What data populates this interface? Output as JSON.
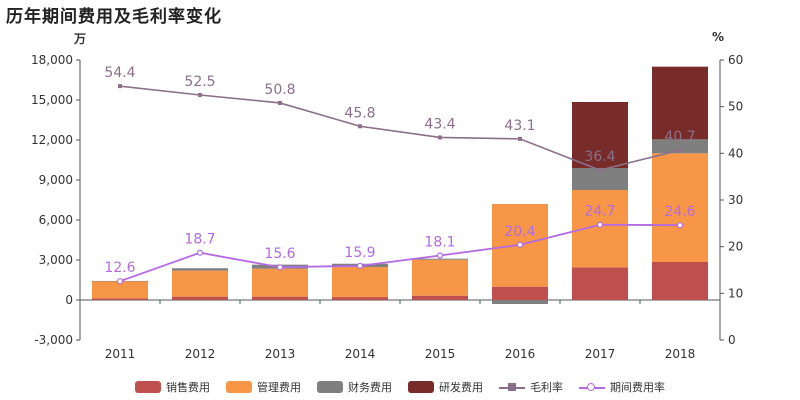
{
  "title": "历年期间费用及毛利率变化",
  "left_unit": "万",
  "right_unit": "%",
  "chart_data": {
    "type": "bar",
    "stacked": true,
    "categories": [
      "2011",
      "2012",
      "2013",
      "2014",
      "2015",
      "2016",
      "2017",
      "2018"
    ],
    "ylim": [
      -3000,
      18000
    ],
    "yticks": [
      -3000,
      0,
      3000,
      6000,
      9000,
      12000,
      15000,
      18000
    ],
    "ytick_labels": [
      "-3,000",
      "0",
      "3,000",
      "6,000",
      "9,000",
      "12,000",
      "15,000",
      "18,000"
    ],
    "y2lim": [
      0,
      60
    ],
    "y2ticks": [
      0,
      10,
      20,
      30,
      40,
      50,
      60
    ],
    "y2tick_labels": [
      "0",
      "10",
      "20",
      "30",
      "40",
      "50",
      "60"
    ],
    "series": [
      {
        "name": "销售费用",
        "color": "#c0504d",
        "values": [
          120,
          250,
          250,
          220,
          320,
          1000,
          2450,
          2850
        ]
      },
      {
        "name": "管理费用",
        "color": "#f79646",
        "values": [
          1280,
          1950,
          2100,
          2250,
          2700,
          6200,
          5800,
          8150
        ]
      },
      {
        "name": "财务费用",
        "color": "#7f7f7f",
        "values": [
          30,
          180,
          300,
          250,
          80,
          -300,
          1650,
          1050
        ]
      },
      {
        "name": "研发费用",
        "color": "#772c2a",
        "values": [
          0,
          0,
          0,
          0,
          0,
          0,
          4950,
          5450
        ]
      }
    ],
    "line_series": [
      {
        "name": "毛利率",
        "color": "#8b7089",
        "marker": "square",
        "values": [
          54.4,
          52.5,
          50.8,
          45.8,
          43.4,
          43.1,
          36.4,
          40.7
        ],
        "labels": [
          "54.4",
          "52.5",
          "50.8",
          "45.8",
          "43.4",
          "43.1",
          "36.4",
          "40.7"
        ]
      },
      {
        "name": "期间费用率",
        "color": "#b36ae2",
        "marker": "circle",
        "values": [
          12.6,
          18.7,
          15.6,
          15.9,
          18.1,
          20.4,
          24.7,
          24.6
        ],
        "labels": [
          "12.6",
          "18.7",
          "15.6",
          "15.9",
          "18.1",
          "20.4",
          "24.7",
          "24.6"
        ]
      }
    ],
    "legend_position": "bottom"
  }
}
